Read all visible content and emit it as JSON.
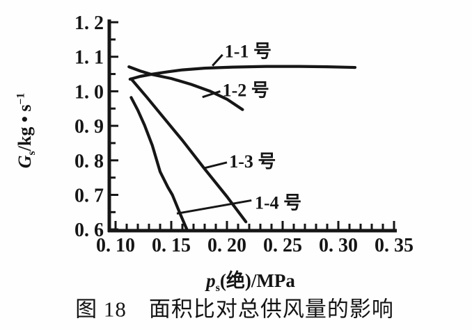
{
  "figure": {
    "caption": "图 18　面积比对总供风量的影响"
  },
  "chart_data": {
    "type": "line",
    "title": "面积比对总供风量的影响 (图 18)",
    "xlabel": "ps(绝)/MPa",
    "ylabel": "Gs/kg•s⁻¹",
    "xlabel_parts": {
      "base": "p",
      "sub": "s",
      "rest": "(绝)/MPa"
    },
    "ylabel_parts": {
      "base": "G",
      "sub": "s",
      "unit": "/kg • s",
      "sup": "−1"
    },
    "xlim": [
      0.1,
      0.35
    ],
    "ylim": [
      0.6,
      1.2
    ],
    "x_tick_values": [
      0.1,
      0.15,
      0.2,
      0.25,
      0.3,
      0.35
    ],
    "x_tick_labels": [
      "0. 10",
      "0. 15",
      "0. 20",
      "0. 25",
      "0. 30",
      "0. 35"
    ],
    "x_minor_step": 0.01,
    "y_tick_values": [
      1.2,
      1.1,
      1.0,
      0.9,
      0.8,
      0.7,
      0.6
    ],
    "y_tick_labels": [
      "1. 2",
      "1. 1",
      "1. 0",
      "0. 9",
      "0. 8",
      "0. 7",
      "0. 6"
    ],
    "y_minor_step": 0.05,
    "grid": false,
    "legend": "inline-annotations",
    "ink_color": "#161616",
    "series": [
      {
        "name": "1-1 号",
        "points": [
          [
            0.113,
            1.035
          ],
          [
            0.122,
            1.043
          ],
          [
            0.132,
            1.049
          ],
          [
            0.146,
            1.056
          ],
          [
            0.16,
            1.062
          ],
          [
            0.18,
            1.067
          ],
          [
            0.205,
            1.07
          ],
          [
            0.235,
            1.072
          ],
          [
            0.265,
            1.072
          ],
          [
            0.29,
            1.071
          ],
          [
            0.315,
            1.069
          ]
        ],
        "label_at": [
          0.198,
          1.116
        ],
        "leader": [
          [
            0.187,
            1.074
          ],
          [
            0.196,
            1.106
          ]
        ]
      },
      {
        "name": "1-2 号",
        "points": [
          [
            0.112,
            1.071
          ],
          [
            0.122,
            1.059
          ],
          [
            0.132,
            1.049
          ],
          [
            0.15,
            1.037
          ],
          [
            0.168,
            1.02
          ],
          [
            0.185,
            1.0
          ],
          [
            0.2,
            0.977
          ],
          [
            0.214,
            0.947
          ]
        ],
        "label_at": [
          0.196,
          1.004
        ],
        "leader": [
          [
            0.178,
            0.983
          ],
          [
            0.194,
            1.0
          ]
        ]
      },
      {
        "name": "1-3 号",
        "points": [
          [
            0.114,
            1.036
          ],
          [
            0.128,
            0.983
          ],
          [
            0.14,
            0.936
          ],
          [
            0.16,
            0.858
          ],
          [
            0.18,
            0.775
          ],
          [
            0.2,
            0.695
          ],
          [
            0.217,
            0.622
          ]
        ],
        "label_at": [
          0.202,
          0.798
        ],
        "leader": [
          [
            0.179,
            0.777
          ],
          [
            0.2,
            0.794
          ]
        ]
      },
      {
        "name": "1-4 号",
        "points": [
          [
            0.114,
            0.982
          ],
          [
            0.12,
            0.945
          ],
          [
            0.126,
            0.902
          ],
          [
            0.133,
            0.843
          ],
          [
            0.14,
            0.767
          ],
          [
            0.147,
            0.722
          ],
          [
            0.151,
            0.7
          ],
          [
            0.158,
            0.645
          ],
          [
            0.164,
            0.6
          ]
        ],
        "label_at": [
          0.225,
          0.678
        ],
        "leader": [
          [
            0.155,
            0.646
          ],
          [
            0.222,
            0.684
          ]
        ]
      }
    ]
  }
}
